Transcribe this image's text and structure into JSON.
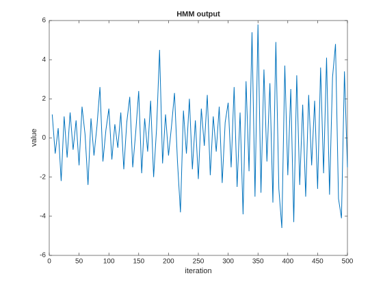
{
  "chart_data": {
    "type": "line",
    "title": "HMM output",
    "xlabel": "iteration",
    "ylabel": "value",
    "x": [
      5,
      10,
      15,
      20,
      25,
      30,
      35,
      40,
      45,
      50,
      55,
      60,
      65,
      70,
      75,
      80,
      85,
      90,
      95,
      100,
      105,
      110,
      115,
      120,
      125,
      130,
      135,
      140,
      145,
      150,
      155,
      160,
      165,
      170,
      175,
      180,
      185,
      190,
      195,
      200,
      205,
      210,
      215,
      220,
      225,
      230,
      235,
      240,
      245,
      250,
      255,
      260,
      265,
      270,
      275,
      280,
      285,
      290,
      295,
      300,
      305,
      310,
      315,
      320,
      325,
      330,
      335,
      340,
      345,
      350,
      355,
      360,
      365,
      370,
      375,
      380,
      385,
      390,
      395,
      400,
      405,
      410,
      415,
      420,
      425,
      430,
      435,
      440,
      445,
      450,
      455,
      460,
      465,
      470,
      475,
      480,
      485,
      490,
      495,
      500
    ],
    "series": [
      {
        "color": "#0072bd",
        "values": [
          1.2,
          -0.8,
          0.5,
          -2.2,
          1.1,
          -1.0,
          1.3,
          -0.6,
          0.9,
          -1.4,
          1.6,
          0.2,
          -2.4,
          1.0,
          -0.9,
          0.6,
          2.6,
          -1.2,
          0.4,
          1.5,
          -1.1,
          0.7,
          -0.5,
          1.3,
          -1.6,
          0.8,
          2.1,
          -1.5,
          0.3,
          2.4,
          -1.8,
          1.0,
          -0.7,
          1.9,
          -2.0,
          0.5,
          4.5,
          -1.3,
          1.2,
          -0.9,
          0.6,
          2.3,
          -1.2,
          -3.8,
          1.4,
          -0.8,
          2.0,
          -1.6,
          0.9,
          -2.1,
          1.5,
          -0.4,
          2.2,
          -1.9,
          1.1,
          -0.7,
          1.6,
          -2.3,
          0.8,
          1.8,
          -1.5,
          2.6,
          -2.5,
          1.3,
          -3.9,
          2.9,
          -1.7,
          5.4,
          -3.0,
          5.8,
          -2.8,
          3.5,
          -1.2,
          2.8,
          -3.3,
          4.9,
          -2.6,
          -4.6,
          3.7,
          -1.9,
          2.5,
          -4.3,
          3.2,
          -2.4,
          1.7,
          -3.0,
          2.2,
          -1.4,
          1.9,
          -2.6,
          3.6,
          -1.8,
          4.1,
          -2.9,
          3.1,
          4.8,
          -3.1,
          -4.1,
          3.4,
          -1.5
        ]
      }
    ],
    "xlim": [
      0,
      500
    ],
    "xticks": [
      0,
      50,
      100,
      150,
      200,
      250,
      300,
      350,
      400,
      450,
      500
    ],
    "ylim": [
      -6,
      6
    ],
    "yticks": [
      -6,
      -4,
      -2,
      0,
      2,
      4,
      6
    ]
  }
}
